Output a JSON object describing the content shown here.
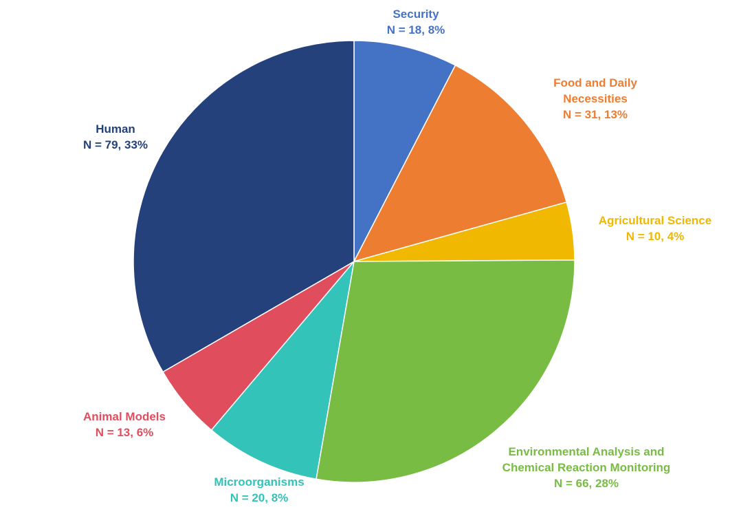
{
  "chart_data": {
    "type": "pie",
    "title": "",
    "slices": [
      {
        "name": "Security",
        "count_label": "N = 18, 8%",
        "n": 18,
        "percent": 8,
        "color": "#4472c4"
      },
      {
        "name": "Food and Daily Necessities",
        "name_lines": [
          "Food and Daily",
          "Necessities"
        ],
        "count_label": "N = 31, 13%",
        "n": 31,
        "percent": 13,
        "color": "#ed7d31"
      },
      {
        "name": "Agricultural Science",
        "count_label": "N = 10, 4%",
        "n": 10,
        "percent": 4,
        "color": "#f0b800"
      },
      {
        "name": "Environmental Analysis and Chemical Reaction Monitoring",
        "name_lines": [
          "Environmental Analysis and",
          "Chemical Reaction Monitoring"
        ],
        "count_label": "N = 66, 28%",
        "n": 66,
        "percent": 28,
        "color": "#78bc44"
      },
      {
        "name": "Microorganisms",
        "count_label": "N = 20, 8%",
        "n": 20,
        "percent": 8,
        "color": "#33c3b8"
      },
      {
        "name": "Animal Models",
        "count_label": "N = 13, 6%",
        "n": 13,
        "percent": 6,
        "color": "#e04e5e"
      },
      {
        "name": "Human",
        "count_label": "N = 79, 33%",
        "n": 79,
        "percent": 33,
        "color": "#24417c"
      }
    ],
    "start": "12 o'clock",
    "direction": "clockwise",
    "legend": "none"
  }
}
